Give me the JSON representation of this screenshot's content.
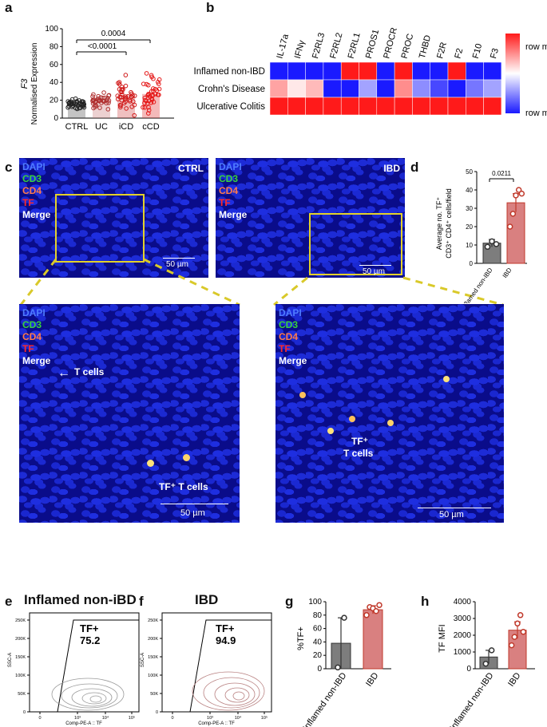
{
  "panels": {
    "a": "a",
    "b": "b",
    "c": "c",
    "d": "d",
    "e": "e",
    "f": "f",
    "g": "g",
    "h": "h"
  },
  "panel_a": {
    "ylabel_gene": "F3",
    "ylabel": "Normalised Expression",
    "y_ticks": [
      "0",
      "20",
      "40",
      "60",
      "80",
      "100"
    ],
    "categories": [
      "CTRL",
      "UC",
      "iCD",
      "cCD"
    ],
    "sig1": "<0.0001",
    "sig2": "0.0004"
  },
  "panel_b": {
    "columns": [
      "IL-17a",
      "IFNγ",
      "F2RL3",
      "F2RL2",
      "F2RL1",
      "PROS1",
      "PROCR",
      "PROC",
      "THBD",
      "F2R",
      "F2",
      "F10",
      "F3"
    ],
    "rows": [
      "Inflamed non-IBD",
      "Crohn's Disease",
      "Ulcerative Colitis"
    ],
    "legend_max": "row max",
    "legend_min": "row min",
    "colors": {
      "max": "#ff1a1a",
      "mid": "#ffffff",
      "min": "#1a1aff"
    }
  },
  "panel_c": {
    "channels": [
      {
        "name": "DAPI",
        "color": "#4f7cff"
      },
      {
        "name": "CD3",
        "color": "#38d13c"
      },
      {
        "name": "CD4",
        "color": "#ff7a4a"
      },
      {
        "name": "TF",
        "color": "#ff2a2a"
      },
      {
        "name": "Merge",
        "color": "#ffffff"
      }
    ],
    "label_ctrl": "CTRL",
    "label_ibd": "IBD",
    "scale": "50 µm",
    "ann_tcells": "T cells",
    "ann_tf_tcells_a": "TF⁺ T cells",
    "ann_tf_b1": "TF⁺",
    "ann_tf_b2": "T cells"
  },
  "panel_d": {
    "ylabel1": "Average no. TF⁺",
    "ylabel2": "CD3⁺ CD4⁺ cells/field",
    "y_ticks": [
      "0",
      "10",
      "20",
      "30",
      "40",
      "50"
    ],
    "pvalue": "0.0211",
    "categories": [
      "Inflamed non-IBD",
      "IBD"
    ]
  },
  "panel_e": {
    "title": "Inflamed non-iBD",
    "gate": "TF+",
    "value": "75.2",
    "ylabel": "SSC-A",
    "xlabel": "Comp-PE-A :: TF",
    "y_ticks": [
      "250K",
      "200K",
      "150K",
      "100K",
      "50K",
      "0"
    ],
    "x_ticks": [
      "0",
      "10³",
      "10⁴",
      "10⁵"
    ]
  },
  "panel_f": {
    "title": "IBD",
    "gate": "TF+",
    "value": "94.9",
    "ylabel": "SSC-A",
    "xlabel": "Comp-PE-A :: TF",
    "y_ticks": [
      "250K",
      "200K",
      "150K",
      "100K",
      "50K",
      "0"
    ],
    "x_ticks": [
      "0",
      "10³",
      "10⁴",
      "10⁵"
    ]
  },
  "panel_g": {
    "ylabel": "%TF+",
    "y_ticks": [
      "0",
      "20",
      "40",
      "60",
      "80",
      "100"
    ],
    "categories": [
      "Inflamed non-IBD",
      "IBD"
    ]
  },
  "panel_h": {
    "ylabel": "TF MFI",
    "y_ticks": [
      "0",
      "1000",
      "2000",
      "3000",
      "4000"
    ],
    "categories": [
      "Inflamed non-IBD",
      "IBD"
    ]
  },
  "chart_data": [
    {
      "type": "bar",
      "panel": "a",
      "categories": [
        "CTRL",
        "UC",
        "iCD",
        "cCD"
      ],
      "values": [
        16,
        19,
        25,
        27
      ],
      "ylim": [
        0,
        100
      ],
      "ylabel": "Normalised Expression"
    },
    {
      "type": "heatmap",
      "panel": "b",
      "rows": [
        "Inflamed non-IBD",
        "Crohn's Disease",
        "Ulcerative Colitis"
      ],
      "columns": [
        "IL-17a",
        "IFNγ",
        "F2RL3",
        "F2RL2",
        "F2RL1",
        "PROS1",
        "PROCR",
        "PROC",
        "THBD",
        "F2R",
        "F2",
        "F10",
        "F3"
      ],
      "values": [
        [
          -1,
          -1,
          -1,
          -1,
          1,
          1,
          -1,
          1,
          -1,
          -1,
          1,
          -1,
          -1
        ],
        [
          0.4,
          0.1,
          0.3,
          -1,
          -1,
          -0.4,
          -1,
          0.5,
          -0.5,
          -0.8,
          -1,
          -0.6,
          -0.4
        ],
        [
          1,
          1,
          1,
          1,
          1,
          1,
          1,
          1,
          1,
          1,
          1,
          1,
          1
        ]
      ]
    },
    {
      "type": "bar",
      "panel": "d",
      "categories": [
        "Inflamed non-IBD",
        "IBD"
      ],
      "values": [
        11,
        33
      ],
      "errors": [
        2,
        5
      ],
      "points": [
        [
          9,
          12,
          10.5
        ],
        [
          20,
          27,
          37,
          40,
          38
        ]
      ],
      "ylim": [
        0,
        50
      ],
      "pvalue": "0.0211"
    },
    {
      "type": "bar",
      "panel": "g",
      "categories": [
        "Inflamed non-IBD",
        "IBD"
      ],
      "values": [
        38,
        88
      ],
      "errors": [
        38,
        6
      ],
      "points": [
        [
          2,
          76
        ],
        [
          80,
          92,
          90,
          86,
          95
        ]
      ],
      "ylim": [
        0,
        100
      ],
      "ylabel": "%TF+"
    },
    {
      "type": "bar",
      "panel": "h",
      "categories": [
        "Inflamed non-IBD",
        "IBD"
      ],
      "values": [
        700,
        2300
      ],
      "errors": [
        400,
        500
      ],
      "points": [
        [
          300,
          1100
        ],
        [
          1400,
          1900,
          2700,
          3200,
          2200
        ]
      ],
      "ylim": [
        0,
        4000
      ],
      "ylabel": "TF MFI"
    }
  ]
}
